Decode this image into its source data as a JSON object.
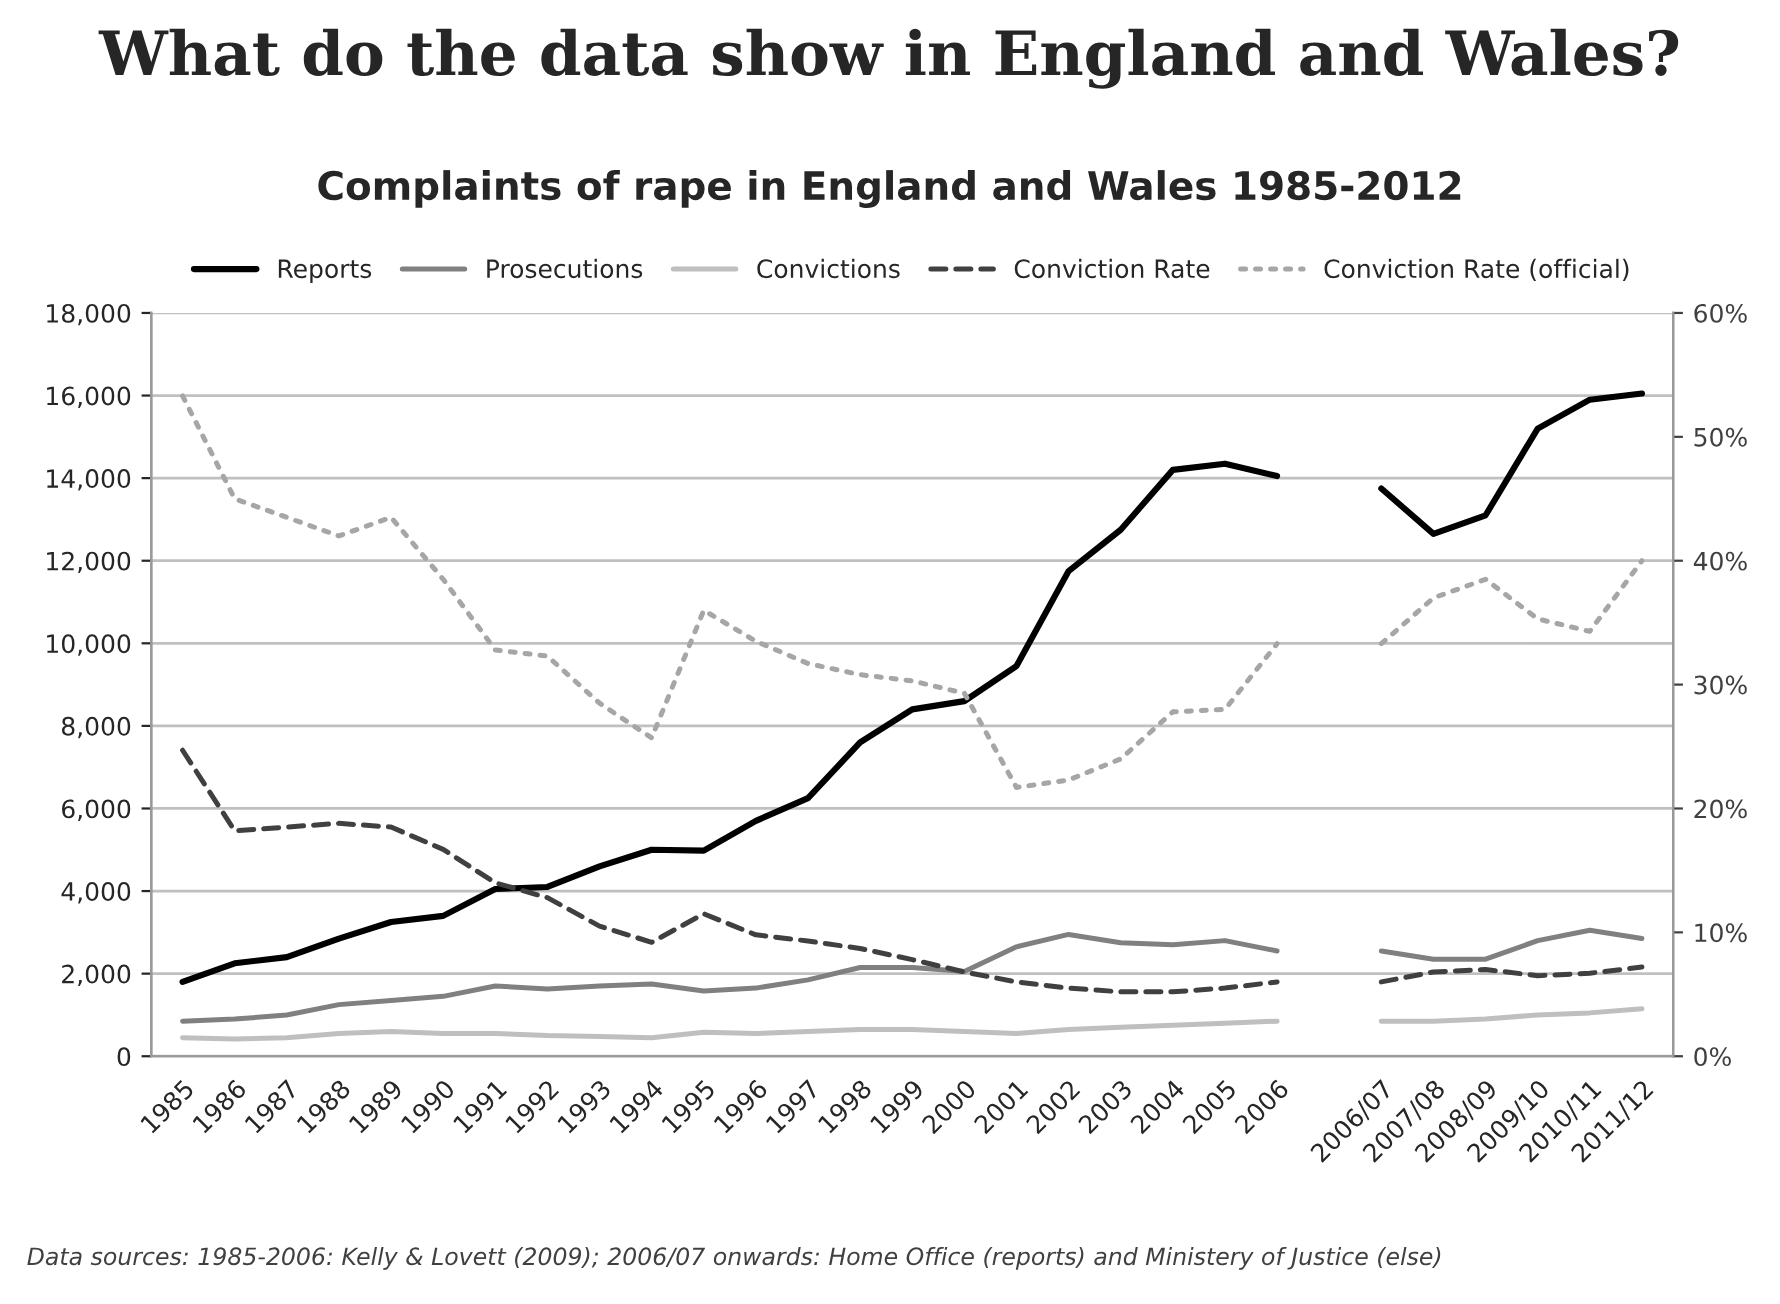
{
  "chart_data": {
    "type": "line",
    "title": "What do the data show in England and Wales?",
    "subtitle": "Complaints of rape in England and Wales 1985-2012",
    "categories": [
      "1985",
      "1986",
      "1987",
      "1988",
      "1989",
      "1990",
      "1991",
      "1992",
      "1993",
      "1994",
      "1995",
      "1996",
      "1997",
      "1998",
      "1999",
      "2000",
      "2001",
      "2002",
      "2003",
      "2004",
      "2005",
      "2006",
      null,
      "2006/07",
      "2007/08",
      "2008/09",
      "2009/10",
      "2010/11",
      "2011/12"
    ],
    "series": [
      {
        "name": "Reports",
        "color": "#000000",
        "line_style": "solid",
        "values": [
          1800,
          2250,
          2400,
          2850,
          3250,
          3400,
          4050,
          4100,
          4600,
          5000,
          4980,
          5700,
          6250,
          7600,
          8400,
          8600,
          9450,
          11750,
          12750,
          14200,
          14350,
          14050,
          null,
          13750,
          12650,
          13100,
          15200,
          15900,
          16050
        ]
      },
      {
        "name": "Prosecutions",
        "color": "#808080",
        "line_style": "solid",
        "values": [
          850,
          900,
          1000,
          1250,
          1350,
          1450,
          1700,
          1630,
          1700,
          1750,
          1580,
          1650,
          1850,
          2150,
          2150,
          2050,
          2650,
          2950,
          2750,
          2700,
          2800,
          2550,
          null,
          2550,
          2350,
          2350,
          2800,
          3050,
          2850
        ]
      },
      {
        "name": "Convictions",
        "color": "#bfbfbf",
        "line_style": "solid",
        "values": [
          450,
          420,
          450,
          550,
          600,
          550,
          550,
          500,
          480,
          450,
          580,
          550,
          600,
          650,
          650,
          600,
          550,
          650,
          700,
          750,
          800,
          850,
          null,
          850,
          850,
          900,
          1000,
          1050,
          1150
        ]
      },
      {
        "name": "Conviction Rate",
        "color": "#404040",
        "line_style": "dashed",
        "axis": "y2",
        "values": [
          24.7,
          18.2,
          18.5,
          18.8,
          18.5,
          16.7,
          14.0,
          12.8,
          10.5,
          9.2,
          11.5,
          9.8,
          9.3,
          8.7,
          7.8,
          6.8,
          6.0,
          5.5,
          5.2,
          5.2,
          5.5,
          6.0,
          null,
          6.0,
          6.8,
          7.0,
          6.5,
          6.7,
          7.2
        ]
      },
      {
        "name": "Conviction Rate (official)",
        "color": "#a6a6a6",
        "line_style": "dotted",
        "axis": "y2",
        "values": [
          53.3,
          45.0,
          43.5,
          42.0,
          43.5,
          38.5,
          32.8,
          32.3,
          28.5,
          25.7,
          36.0,
          33.5,
          31.7,
          30.8,
          30.3,
          29.3,
          21.7,
          22.3,
          24.0,
          27.8,
          28.0,
          33.3,
          null,
          33.3,
          37.0,
          38.5,
          35.3,
          34.3,
          40.0
        ]
      }
    ],
    "ylim": [
      0,
      18000
    ],
    "yticks": [
      0,
      {
        "value": 2000,
        "label": "2,000"
      },
      {
        "value": 4000,
        "label": "4,000"
      },
      {
        "value": 6000,
        "label": "6,000"
      },
      {
        "value": 8000,
        "label": "8,000"
      },
      {
        "value": 10000,
        "label": "10,000"
      },
      {
        "value": 12000,
        "label": "12,000"
      },
      {
        "value": 14000,
        "label": "14,000"
      },
      {
        "value": 16000,
        "label": "16,000"
      },
      {
        "value": 18000,
        "label": "18,000"
      }
    ],
    "y2lim": [
      0,
      60
    ],
    "y2ticks": [
      {
        "value": 0,
        "label": "0%"
      },
      {
        "value": 10,
        "label": "10%"
      },
      {
        "value": 20,
        "label": "20%"
      },
      {
        "value": 30,
        "label": "30%"
      },
      {
        "value": 40,
        "label": "40%"
      },
      {
        "value": 50,
        "label": "50%"
      },
      {
        "value": 60,
        "label": "60%"
      }
    ],
    "grid": "y",
    "legend": "top",
    "annotations": [
      "Data sources: 1985-2006: Kelly & Lovett (2009); 2006/07 onwards: Home Office (reports) and Ministery of Justice (else)"
    ]
  }
}
